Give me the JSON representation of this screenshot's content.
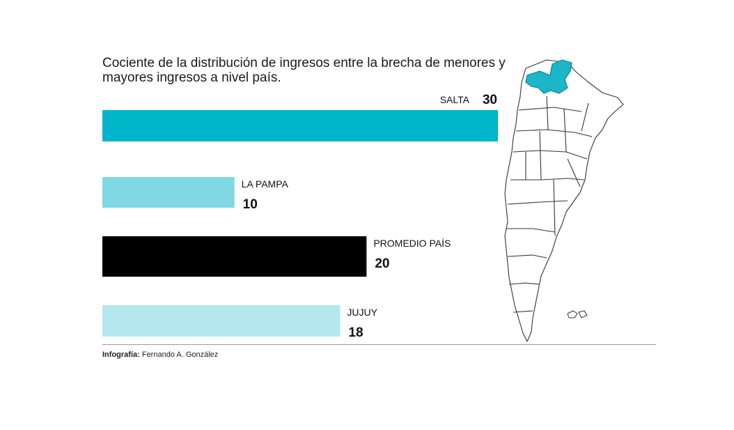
{
  "title": "Cociente de la distribución de ingresos entre la brecha de menores y mayores ingresos a nivel país.",
  "credit_label": "Infografía:",
  "credit_name": "Fernando A. González",
  "chart_data": {
    "type": "bar",
    "orientation": "horizontal",
    "title": "Cociente de la distribución de ingresos entre la brecha de menores y mayores ingresos a nivel país.",
    "categories": [
      "SALTA",
      "LA PAMPA",
      "PROMEDIO PAÍS",
      "JUJUY"
    ],
    "values": [
      30,
      10,
      20,
      18
    ],
    "colors": [
      "#00b5c9",
      "#7fd8e4",
      "#000000",
      "#b3e8ef"
    ],
    "xlim": [
      0,
      30
    ],
    "grid": false,
    "legend": "none"
  },
  "map": {
    "highlight_region": "Salta",
    "highlight_color": "#1cb6c8",
    "outline_color": "#333333"
  }
}
